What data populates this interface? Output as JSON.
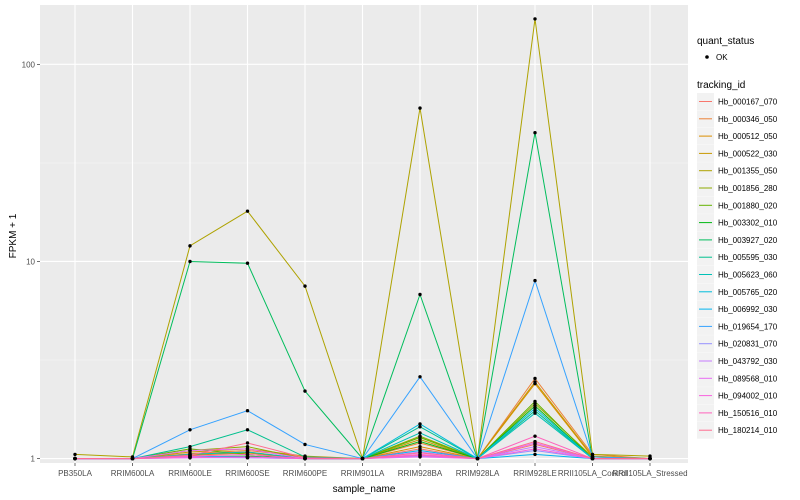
{
  "chart_data": {
    "type": "line",
    "xlabel": "sample_name",
    "ylabel": "FPKM + 1",
    "y_scale": "log10",
    "ylim": [
      0.95,
      200
    ],
    "y_ticks": [
      1,
      10,
      100
    ],
    "y_tick_labels": [
      "1",
      "10",
      "100"
    ],
    "categories": [
      "PB350LA",
      "RRIM600LA",
      "RRIM600LE",
      "RRIM600SE",
      "RRIM600PE",
      "RRIM901LA",
      "RRIM928BA",
      "RRIM928LA",
      "RRIM928LE",
      "RRII105LA_Control",
      "RRII105LA_Stressed"
    ],
    "point_status_legend": {
      "title": "quant_status",
      "entries": [
        "OK"
      ]
    },
    "series_legend_title": "tracking_id",
    "series": [
      {
        "name": "Hb_000167_070",
        "color": "#F8766D",
        "values": [
          1.0,
          1.0,
          1.05,
          1.08,
          1.0,
          1.0,
          1.12,
          1.0,
          1.18,
          1.0,
          1.0
        ]
      },
      {
        "name": "Hb_000346_050",
        "color": "#EC8239",
        "values": [
          1.0,
          1.0,
          1.06,
          1.1,
          1.02,
          1.0,
          1.2,
          1.0,
          2.55,
          1.05,
          1.0
        ]
      },
      {
        "name": "Hb_000512_050",
        "color": "#DB8E00",
        "values": [
          1.0,
          1.0,
          1.04,
          1.07,
          1.0,
          1.0,
          1.15,
          1.0,
          2.4,
          1.02,
          1.0
        ]
      },
      {
        "name": "Hb_000522_030",
        "color": "#C79800",
        "values": [
          1.0,
          1.0,
          1.08,
          1.12,
          1.03,
          1.0,
          1.25,
          1.0,
          2.45,
          1.03,
          1.0
        ]
      },
      {
        "name": "Hb_001355_050",
        "color": "#AEA200",
        "values": [
          1.05,
          1.02,
          12.0,
          18.0,
          7.5,
          1.0,
          60.0,
          1.0,
          170.0,
          1.05,
          1.03
        ]
      },
      {
        "name": "Hb_001856_280",
        "color": "#8FAA00",
        "values": [
          1.0,
          1.0,
          1.1,
          1.15,
          1.0,
          1.0,
          1.3,
          1.0,
          1.9,
          1.02,
          1.0
        ]
      },
      {
        "name": "Hb_001880_020",
        "color": "#64B200",
        "values": [
          1.0,
          1.0,
          1.12,
          1.05,
          1.0,
          1.0,
          1.28,
          1.0,
          1.95,
          1.0,
          1.0
        ]
      },
      {
        "name": "Hb_003302_010",
        "color": "#00B813",
        "values": [
          1.0,
          1.0,
          1.02,
          1.03,
          1.0,
          1.0,
          1.22,
          1.0,
          1.85,
          1.0,
          1.0
        ]
      },
      {
        "name": "Hb_003927_020",
        "color": "#00BD5C",
        "values": [
          1.0,
          1.0,
          10.0,
          9.8,
          2.2,
          1.0,
          6.8,
          1.0,
          45.0,
          1.0,
          1.0
        ]
      },
      {
        "name": "Hb_005595_030",
        "color": "#00C08E",
        "values": [
          1.0,
          1.0,
          1.15,
          1.4,
          1.02,
          1.0,
          1.45,
          1.0,
          1.75,
          1.0,
          1.0
        ]
      },
      {
        "name": "Hb_005623_060",
        "color": "#00C1B7",
        "values": [
          1.0,
          1.0,
          1.05,
          1.08,
          1.0,
          1.0,
          1.35,
          1.0,
          1.7,
          1.0,
          1.0
        ]
      },
      {
        "name": "Hb_005765_020",
        "color": "#00BDDC",
        "values": [
          1.0,
          1.0,
          1.03,
          1.02,
          1.0,
          1.0,
          1.5,
          1.0,
          1.8,
          1.0,
          1.0
        ]
      },
      {
        "name": "Hb_006992_030",
        "color": "#00B4F0",
        "values": [
          1.0,
          1.0,
          1.02,
          1.02,
          1.0,
          1.0,
          1.1,
          1.0,
          1.05,
          1.0,
          1.0
        ]
      },
      {
        "name": "Hb_019654_170",
        "color": "#35A2FF",
        "values": [
          1.0,
          1.0,
          1.4,
          1.75,
          1.18,
          1.0,
          2.6,
          1.0,
          8.0,
          1.02,
          1.0
        ]
      },
      {
        "name": "Hb_020831_070",
        "color": "#9590FF",
        "values": [
          1.0,
          1.0,
          1.01,
          1.01,
          1.0,
          1.0,
          1.03,
          1.0,
          1.1,
          1.0,
          1.0
        ]
      },
      {
        "name": "Hb_043792_030",
        "color": "#C77CFF",
        "values": [
          1.0,
          1.0,
          1.02,
          1.01,
          1.0,
          1.0,
          1.08,
          1.0,
          1.15,
          1.0,
          1.0
        ]
      },
      {
        "name": "Hb_089568_010",
        "color": "#E76BF3",
        "values": [
          1.0,
          1.0,
          1.1,
          1.12,
          1.0,
          1.0,
          1.02,
          1.0,
          1.2,
          1.0,
          1.0
        ]
      },
      {
        "name": "Hb_094002_010",
        "color": "#F962DD",
        "values": [
          1.0,
          1.0,
          1.01,
          1.02,
          1.0,
          1.0,
          1.05,
          1.0,
          1.12,
          1.0,
          1.0
        ]
      },
      {
        "name": "Hb_150516_010",
        "color": "#FF62BC",
        "values": [
          1.0,
          1.0,
          1.03,
          1.05,
          1.0,
          1.0,
          1.04,
          1.0,
          1.3,
          1.0,
          1.0
        ]
      },
      {
        "name": "Hb_180214_010",
        "color": "#FF6C90",
        "values": [
          1.0,
          1.0,
          1.04,
          1.2,
          1.01,
          1.0,
          1.07,
          1.0,
          1.22,
          1.0,
          1.0
        ]
      }
    ]
  }
}
